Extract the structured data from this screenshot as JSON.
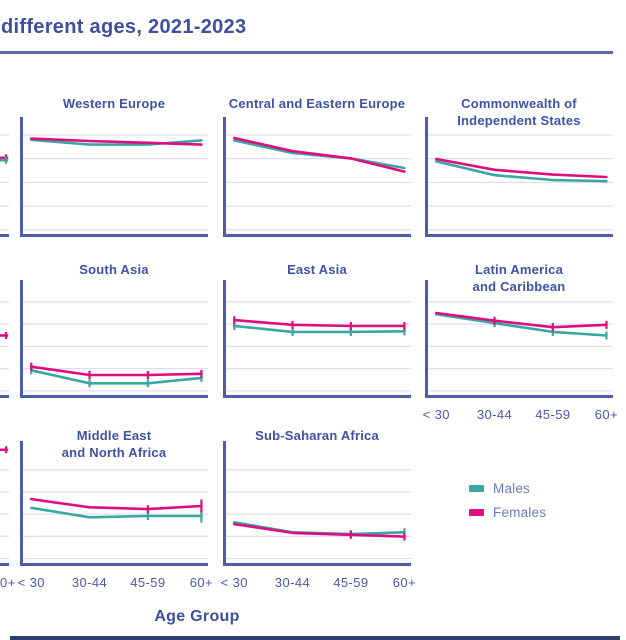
{
  "header": {
    "title": "different ages, 2021-2023"
  },
  "x_axis": {
    "label": "Age Group",
    "ticks": [
      "< 30",
      "30-44",
      "45-59",
      "60+"
    ],
    "cropped_left_tick_fragment": "0+"
  },
  "legend": {
    "items": [
      {
        "label": "Males",
        "color": "#39A7A2"
      },
      {
        "label": "Females",
        "color": "#E00D81"
      }
    ]
  },
  "colors": {
    "title": "#3D50A0",
    "panel_title": "#3F53A5",
    "axis": "#4C5EA9",
    "grid": "#DDE0F0",
    "tick_label": "#4E58A8",
    "legend_text": "#6F79BE",
    "header_rule": "#5A6AA8",
    "bottom_bar": "#2D3E6F",
    "males": "#39A7A2",
    "females": "#E00D81"
  },
  "chart_data": {
    "type": "line",
    "categories": [
      "< 30",
      "30-44",
      "45-59",
      "60+"
    ],
    "series_names": [
      "Males",
      "Females"
    ],
    "y_axis": "y-axis labels cropped out of screenshot; values normalized 0-1 of panel plot height",
    "legend_position": "bottom-right cell of facet grid",
    "grid": true,
    "panels": [
      {
        "title": "Western Europe",
        "title_lines": [
          "Western Europe"
        ],
        "row": 1,
        "col": 1,
        "x_labels": false,
        "markers": [],
        "males": [
          0.81,
          0.77,
          0.77,
          0.805
        ],
        "females": [
          0.82,
          0.8,
          0.785,
          0.77
        ]
      },
      {
        "title": "Central and Eastern Europe",
        "title_lines": [
          "Central and Eastern Europe"
        ],
        "row": 1,
        "col": 2,
        "x_labels": false,
        "markers": [],
        "males": [
          0.805,
          0.7,
          0.655,
          0.575
        ],
        "females": [
          0.825,
          0.715,
          0.655,
          0.545
        ]
      },
      {
        "title": "Commonwealth of Independent States",
        "title_lines": [
          "Commonwealth of",
          "Independent States"
        ],
        "row": 1,
        "col": 3,
        "x_labels": false,
        "markers": [],
        "males": [
          0.63,
          0.515,
          0.475,
          0.465
        ],
        "females": [
          0.65,
          0.56,
          0.52,
          0.5
        ]
      },
      {
        "title": "South Asia",
        "title_lines": [
          "South Asia"
        ],
        "row": 2,
        "col": 1,
        "x_labels": false,
        "markers": [
          0,
          1,
          2,
          3
        ],
        "males": [
          0.235,
          0.125,
          0.125,
          0.17
        ],
        "females": [
          0.265,
          0.195,
          0.195,
          0.205
        ]
      },
      {
        "title": "East Asia",
        "title_lines": [
          "East Asia"
        ],
        "row": 2,
        "col": 2,
        "x_labels": false,
        "markers": [
          0,
          1,
          2,
          3
        ],
        "males": [
          0.61,
          0.56,
          0.56,
          0.565
        ],
        "females": [
          0.66,
          0.62,
          0.61,
          0.61
        ]
      },
      {
        "title": "Latin America and Caribbean",
        "title_lines": [
          "Latin America",
          "and Caribbean"
        ],
        "row": 2,
        "col": 3,
        "x_labels": true,
        "markers": [
          1,
          2,
          3
        ],
        "males": [
          0.71,
          0.635,
          0.56,
          0.53
        ],
        "females": [
          0.72,
          0.655,
          0.6,
          0.62
        ]
      },
      {
        "title": "Middle East and North Africa",
        "title_lines": [
          "Middle East",
          "and North Africa"
        ],
        "row": 3,
        "col": 1,
        "x_labels": true,
        "markers": [
          2,
          3
        ],
        "tall_markers": [
          3
        ],
        "males": [
          0.465,
          0.39,
          0.4,
          0.4
        ],
        "females": [
          0.535,
          0.47,
          0.455,
          0.48
        ]
      },
      {
        "title": "Sub-Saharan Africa",
        "title_lines": [
          "Sub-Saharan Africa"
        ],
        "row": 3,
        "col": 2,
        "x_labels": true,
        "markers": [
          2,
          3
        ],
        "males": [
          0.35,
          0.27,
          0.255,
          0.27
        ],
        "females": [
          0.335,
          0.265,
          0.25,
          0.235
        ]
      }
    ],
    "cropped_left_panels": [
      {
        "row": 1,
        "points": [
          {
            "series": "Females",
            "v": 0.66
          },
          {
            "series": "Males",
            "v": 0.64
          }
        ]
      },
      {
        "row": 2,
        "points": [
          {
            "series": "Females",
            "v": 0.53
          }
        ]
      },
      {
        "row": 3,
        "points": [
          {
            "series": "Females",
            "v": 0.93
          }
        ]
      }
    ]
  }
}
